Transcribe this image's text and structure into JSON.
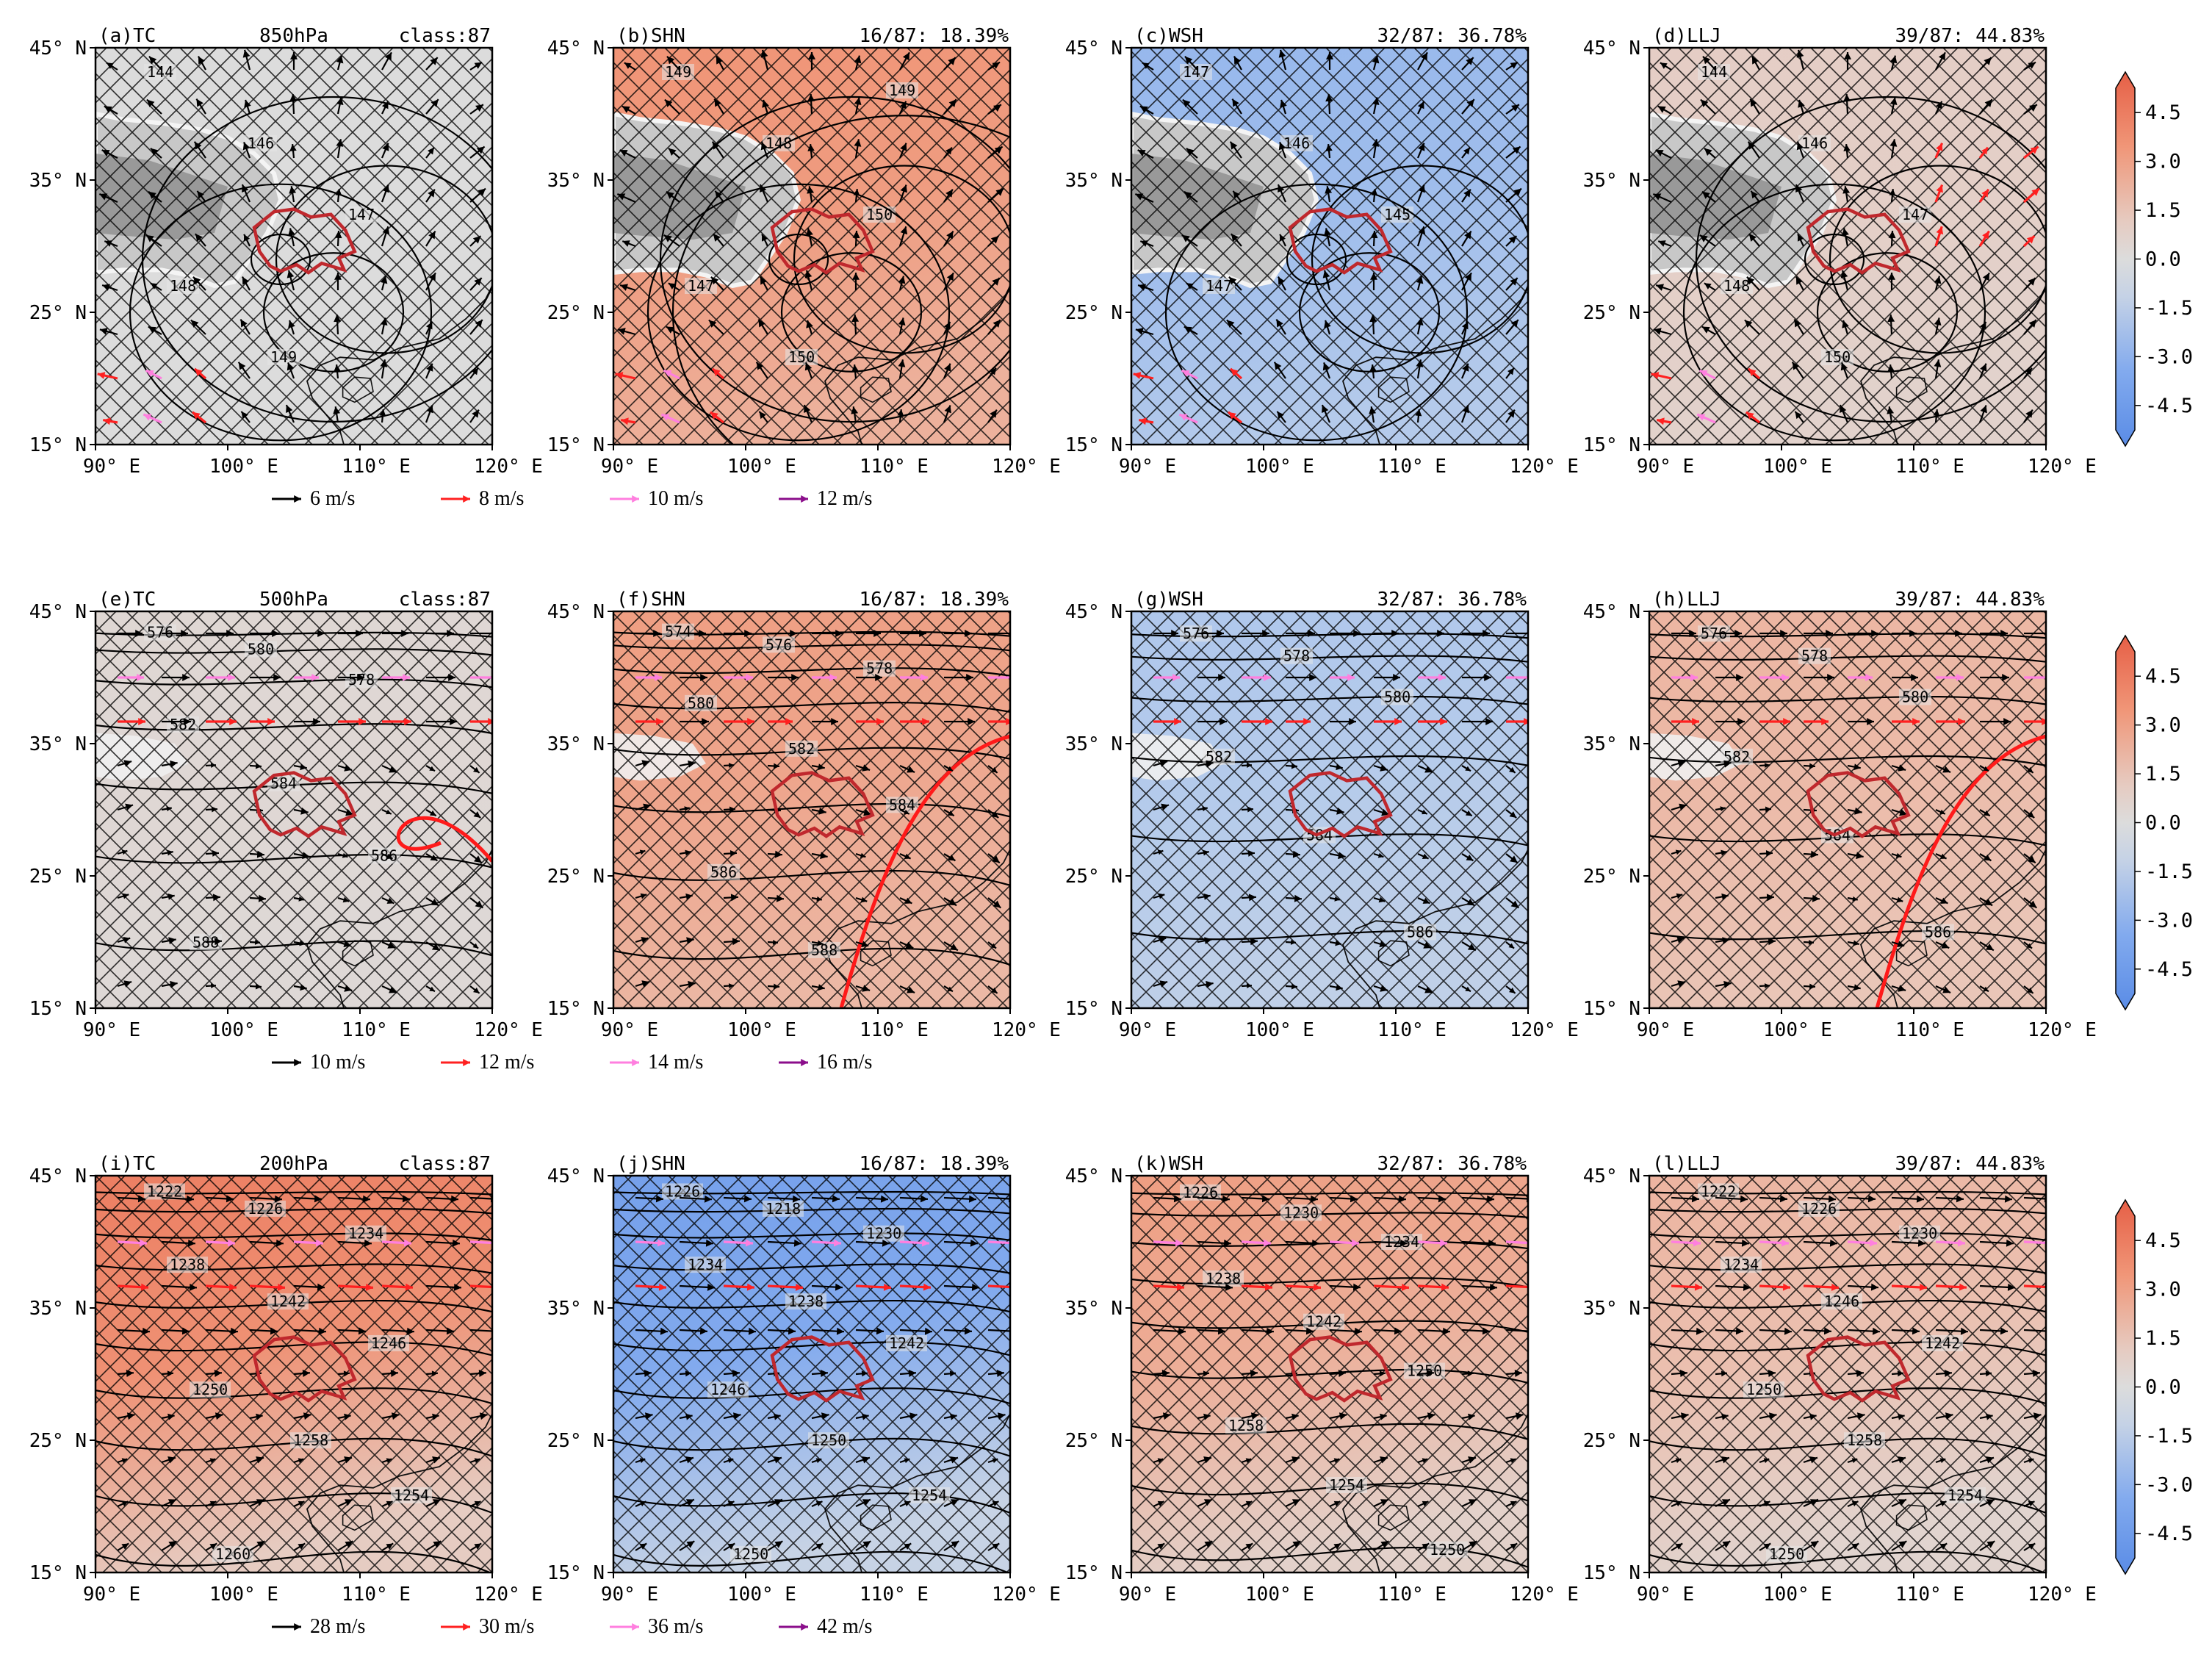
{
  "figure": {
    "lat_ticks": [
      "45° N",
      "35° N",
      "25° N",
      "15° N"
    ],
    "lon_ticks": [
      "90° E",
      "100° E",
      "110° E",
      "120° E"
    ],
    "axis_extent": {
      "lon": [
        90,
        120
      ],
      "lat": [
        15,
        45
      ]
    },
    "colorbar": {
      "ticks": [
        "4.5",
        "3.0",
        "1.5",
        "0.0",
        "-1.5",
        "-3.0",
        "-4.5"
      ],
      "range": [
        -5.25,
        5.25
      ]
    },
    "colors": {
      "positive": "#e8765a",
      "neutral": "#dcdcdc",
      "negative": "#6f9fe8",
      "red_contour": "#ff1a1a",
      "region": "#c0282d"
    }
  },
  "rows": [
    {
      "level": "850hPa",
      "legend": [
        {
          "label": "6 m/s",
          "color": "#000000"
        },
        {
          "label": "8 m/s",
          "color": "#ff2020"
        },
        {
          "label": "10 m/s",
          "color": "#ff7fdf"
        },
        {
          "label": "12 m/s",
          "color": "#8b0e8b"
        }
      ],
      "panels": [
        {
          "letter": "(a)",
          "name": "TC",
          "level": "850hPa",
          "stat": "class:87",
          "mean_anomaly": 0.0,
          "contour_labels": [
            "144",
            "146",
            "147",
            "148",
            "149"
          ]
        },
        {
          "letter": "(b)",
          "name": "SHN",
          "stat": "16/87: 18.39%",
          "mean_anomaly": 2.8,
          "contour_labels": [
            "149",
            "148",
            "150",
            "147",
            "150",
            "149"
          ]
        },
        {
          "letter": "(c)",
          "name": "WSH",
          "stat": "32/87: 36.78%",
          "mean_anomaly": -2.2,
          "contour_labels": [
            "147",
            "146",
            "145",
            "147"
          ]
        },
        {
          "letter": "(d)",
          "name": "LLJ",
          "stat": "39/87: 44.83%",
          "mean_anomaly": 0.8,
          "contour_labels": [
            "144",
            "146",
            "147",
            "148",
            "150"
          ]
        }
      ]
    },
    {
      "level": "500hPa",
      "legend": [
        {
          "label": "10 m/s",
          "color": "#000000"
        },
        {
          "label": "12 m/s",
          "color": "#ff2020"
        },
        {
          "label": "14 m/s",
          "color": "#ff7fdf"
        },
        {
          "label": "16 m/s",
          "color": "#8b0e8b"
        }
      ],
      "panels": [
        {
          "letter": "(e)",
          "name": "TC",
          "level": "500hPa",
          "stat": "class:87",
          "mean_anomaly": 0.3,
          "contour_labels": [
            "576",
            "580",
            "578",
            "582",
            "584",
            "586",
            "588"
          ]
        },
        {
          "letter": "(f)",
          "name": "SHN",
          "stat": "16/87: 18.39%",
          "mean_anomaly": 2.5,
          "contour_labels": [
            "574",
            "576",
            "578",
            "580",
            "582",
            "584",
            "586",
            "588"
          ]
        },
        {
          "letter": "(g)",
          "name": "WSH",
          "stat": "32/87: 36.78%",
          "mean_anomaly": -1.6,
          "contour_labels": [
            "576",
            "578",
            "580",
            "582",
            "584",
            "586"
          ]
        },
        {
          "letter": "(h)",
          "name": "LLJ",
          "stat": "39/87: 44.83%",
          "mean_anomaly": 1.8,
          "contour_labels": [
            "576",
            "578",
            "580",
            "582",
            "584",
            "586"
          ]
        }
      ]
    },
    {
      "level": "200hPa",
      "legend": [
        {
          "label": "28 m/s",
          "color": "#000000"
        },
        {
          "label": "30 m/s",
          "color": "#ff2020"
        },
        {
          "label": "36 m/s",
          "color": "#ff7fdf"
        },
        {
          "label": "42 m/s",
          "color": "#8b0e8b"
        }
      ],
      "panels": [
        {
          "letter": "(i)",
          "name": "TC",
          "level": "200hPa",
          "stat": "class:87",
          "mean_anomaly": 3.2,
          "contour_labels": [
            "1222",
            "1226",
            "1234",
            "1238",
            "1242",
            "1246",
            "1250",
            "1258",
            "1254",
            "1260"
          ]
        },
        {
          "letter": "(j)",
          "name": "SHN",
          "stat": "16/87: 18.39%",
          "mean_anomaly": -3.0,
          "contour_labels": [
            "1226",
            "1218",
            "1230",
            "1234",
            "1238",
            "1242",
            "1246",
            "1250",
            "1254",
            "1250"
          ]
        },
        {
          "letter": "(k)",
          "name": "WSH",
          "stat": "32/87: 36.78%",
          "mean_anomaly": 2.2,
          "contour_labels": [
            "1226",
            "1230",
            "1234",
            "1238",
            "1242",
            "1250",
            "1258",
            "1254",
            "1250"
          ]
        },
        {
          "letter": "(l)",
          "name": "LLJ",
          "stat": "39/87: 44.83%",
          "mean_anomaly": 1.6,
          "contour_labels": [
            "1222",
            "1226",
            "1230",
            "1234",
            "1246",
            "1242",
            "1250",
            "1258",
            "1254",
            "1250"
          ]
        }
      ]
    }
  ],
  "chart_data": [
    {
      "type": "heatmap",
      "title": "(a)TC 850hPa class:87",
      "level": "850hPa",
      "x_range": [
        90,
        120
      ],
      "y_range": [
        15,
        45
      ],
      "value_range": [
        -4.5,
        4.5
      ],
      "mean_anomaly": 0.0,
      "wind_legend_ms": [
        6,
        8,
        10,
        12
      ]
    },
    {
      "type": "heatmap",
      "title": "(b)SHN 16/87: 18.39%",
      "level": "850hPa",
      "x_range": [
        90,
        120
      ],
      "y_range": [
        15,
        45
      ],
      "value_range": [
        -4.5,
        4.5
      ],
      "mean_anomaly": 2.8,
      "wind_legend_ms": [
        6,
        8,
        10,
        12
      ]
    },
    {
      "type": "heatmap",
      "title": "(c)WSH 32/87: 36.78%",
      "level": "850hPa",
      "x_range": [
        90,
        120
      ],
      "y_range": [
        15,
        45
      ],
      "value_range": [
        -4.5,
        4.5
      ],
      "mean_anomaly": -2.2,
      "wind_legend_ms": [
        6,
        8,
        10,
        12
      ]
    },
    {
      "type": "heatmap",
      "title": "(d)LLJ 39/87: 44.83%",
      "level": "850hPa",
      "x_range": [
        90,
        120
      ],
      "y_range": [
        15,
        45
      ],
      "value_range": [
        -4.5,
        4.5
      ],
      "mean_anomaly": 0.8,
      "wind_legend_ms": [
        6,
        8,
        10,
        12
      ]
    },
    {
      "type": "heatmap",
      "title": "(e)TC 500hPa class:87",
      "level": "500hPa",
      "x_range": [
        90,
        120
      ],
      "y_range": [
        15,
        45
      ],
      "value_range": [
        -4.5,
        4.5
      ],
      "mean_anomaly": 0.3,
      "wind_legend_ms": [
        10,
        12,
        14,
        16
      ]
    },
    {
      "type": "heatmap",
      "title": "(f)SHN 16/87: 18.39%",
      "level": "500hPa",
      "x_range": [
        90,
        120
      ],
      "y_range": [
        15,
        45
      ],
      "value_range": [
        -4.5,
        4.5
      ],
      "mean_anomaly": 2.5,
      "wind_legend_ms": [
        10,
        12,
        14,
        16
      ]
    },
    {
      "type": "heatmap",
      "title": "(g)WSH 32/87: 36.78%",
      "level": "500hPa",
      "x_range": [
        90,
        120
      ],
      "y_range": [
        15,
        45
      ],
      "value_range": [
        -4.5,
        4.5
      ],
      "mean_anomaly": -1.6,
      "wind_legend_ms": [
        10,
        12,
        14,
        16
      ]
    },
    {
      "type": "heatmap",
      "title": "(h)LLJ 39/87: 44.83%",
      "level": "500hPa",
      "x_range": [
        90,
        120
      ],
      "y_range": [
        15,
        45
      ],
      "value_range": [
        -4.5,
        4.5
      ],
      "mean_anomaly": 1.8,
      "wind_legend_ms": [
        10,
        12,
        14,
        16
      ]
    },
    {
      "type": "heatmap",
      "title": "(i)TC 200hPa class:87",
      "level": "200hPa",
      "x_range": [
        90,
        120
      ],
      "y_range": [
        15,
        45
      ],
      "value_range": [
        -4.5,
        4.5
      ],
      "mean_anomaly": 3.2,
      "wind_legend_ms": [
        28,
        30,
        36,
        42
      ]
    },
    {
      "type": "heatmap",
      "title": "(j)SHN 16/87: 18.39%",
      "level": "200hPa",
      "x_range": [
        90,
        120
      ],
      "y_range": [
        15,
        45
      ],
      "value_range": [
        -4.5,
        4.5
      ],
      "mean_anomaly": -3.0,
      "wind_legend_ms": [
        28,
        30,
        36,
        42
      ]
    },
    {
      "type": "heatmap",
      "title": "(k)WSH 32/87: 36.78%",
      "level": "200hPa",
      "x_range": [
        90,
        120
      ],
      "y_range": [
        15,
        45
      ],
      "value_range": [
        -4.5,
        4.5
      ],
      "mean_anomaly": 2.2,
      "wind_legend_ms": [
        28,
        30,
        36,
        42
      ]
    },
    {
      "type": "heatmap",
      "title": "(l)LLJ 39/87: 44.83%",
      "level": "200hPa",
      "x_range": [
        90,
        120
      ],
      "y_range": [
        15,
        45
      ],
      "value_range": [
        -4.5,
        4.5
      ],
      "mean_anomaly": 1.6,
      "wind_legend_ms": [
        28,
        30,
        36,
        42
      ]
    }
  ]
}
